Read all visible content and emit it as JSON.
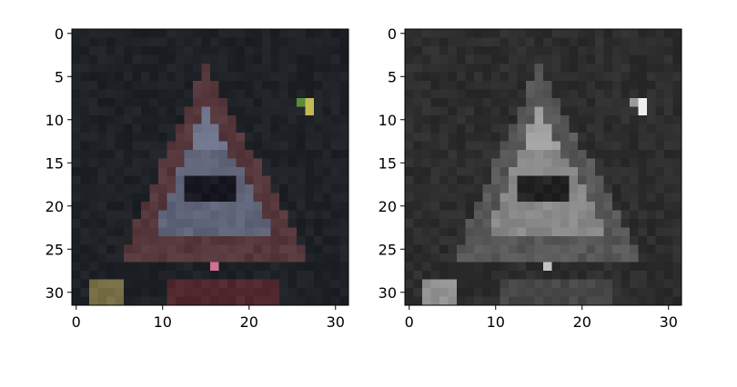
{
  "figure": {
    "panels": [
      {
        "name": "color-image",
        "description_pixels": "32x32 color traffic sign (triangle with hump symbol)",
        "x_ticks": [
          "0",
          "10",
          "20",
          "30"
        ],
        "y_ticks": [
          "0",
          "5",
          "10",
          "15",
          "20",
          "25",
          "30"
        ],
        "image_size": 32
      },
      {
        "name": "grayscale-image",
        "x_ticks": [
          "0",
          "10",
          "20",
          "30"
        ],
        "y_ticks": [
          "0",
          "5",
          "10",
          "15",
          "20",
          "25",
          "30"
        ],
        "image_size": 32
      }
    ],
    "colors": {
      "background_dark": "#1e2226",
      "sign_border": "#5f3a3a",
      "sign_inner_color": "#6a6f82",
      "sign_inner_gray": "#8a8a8a"
    }
  }
}
